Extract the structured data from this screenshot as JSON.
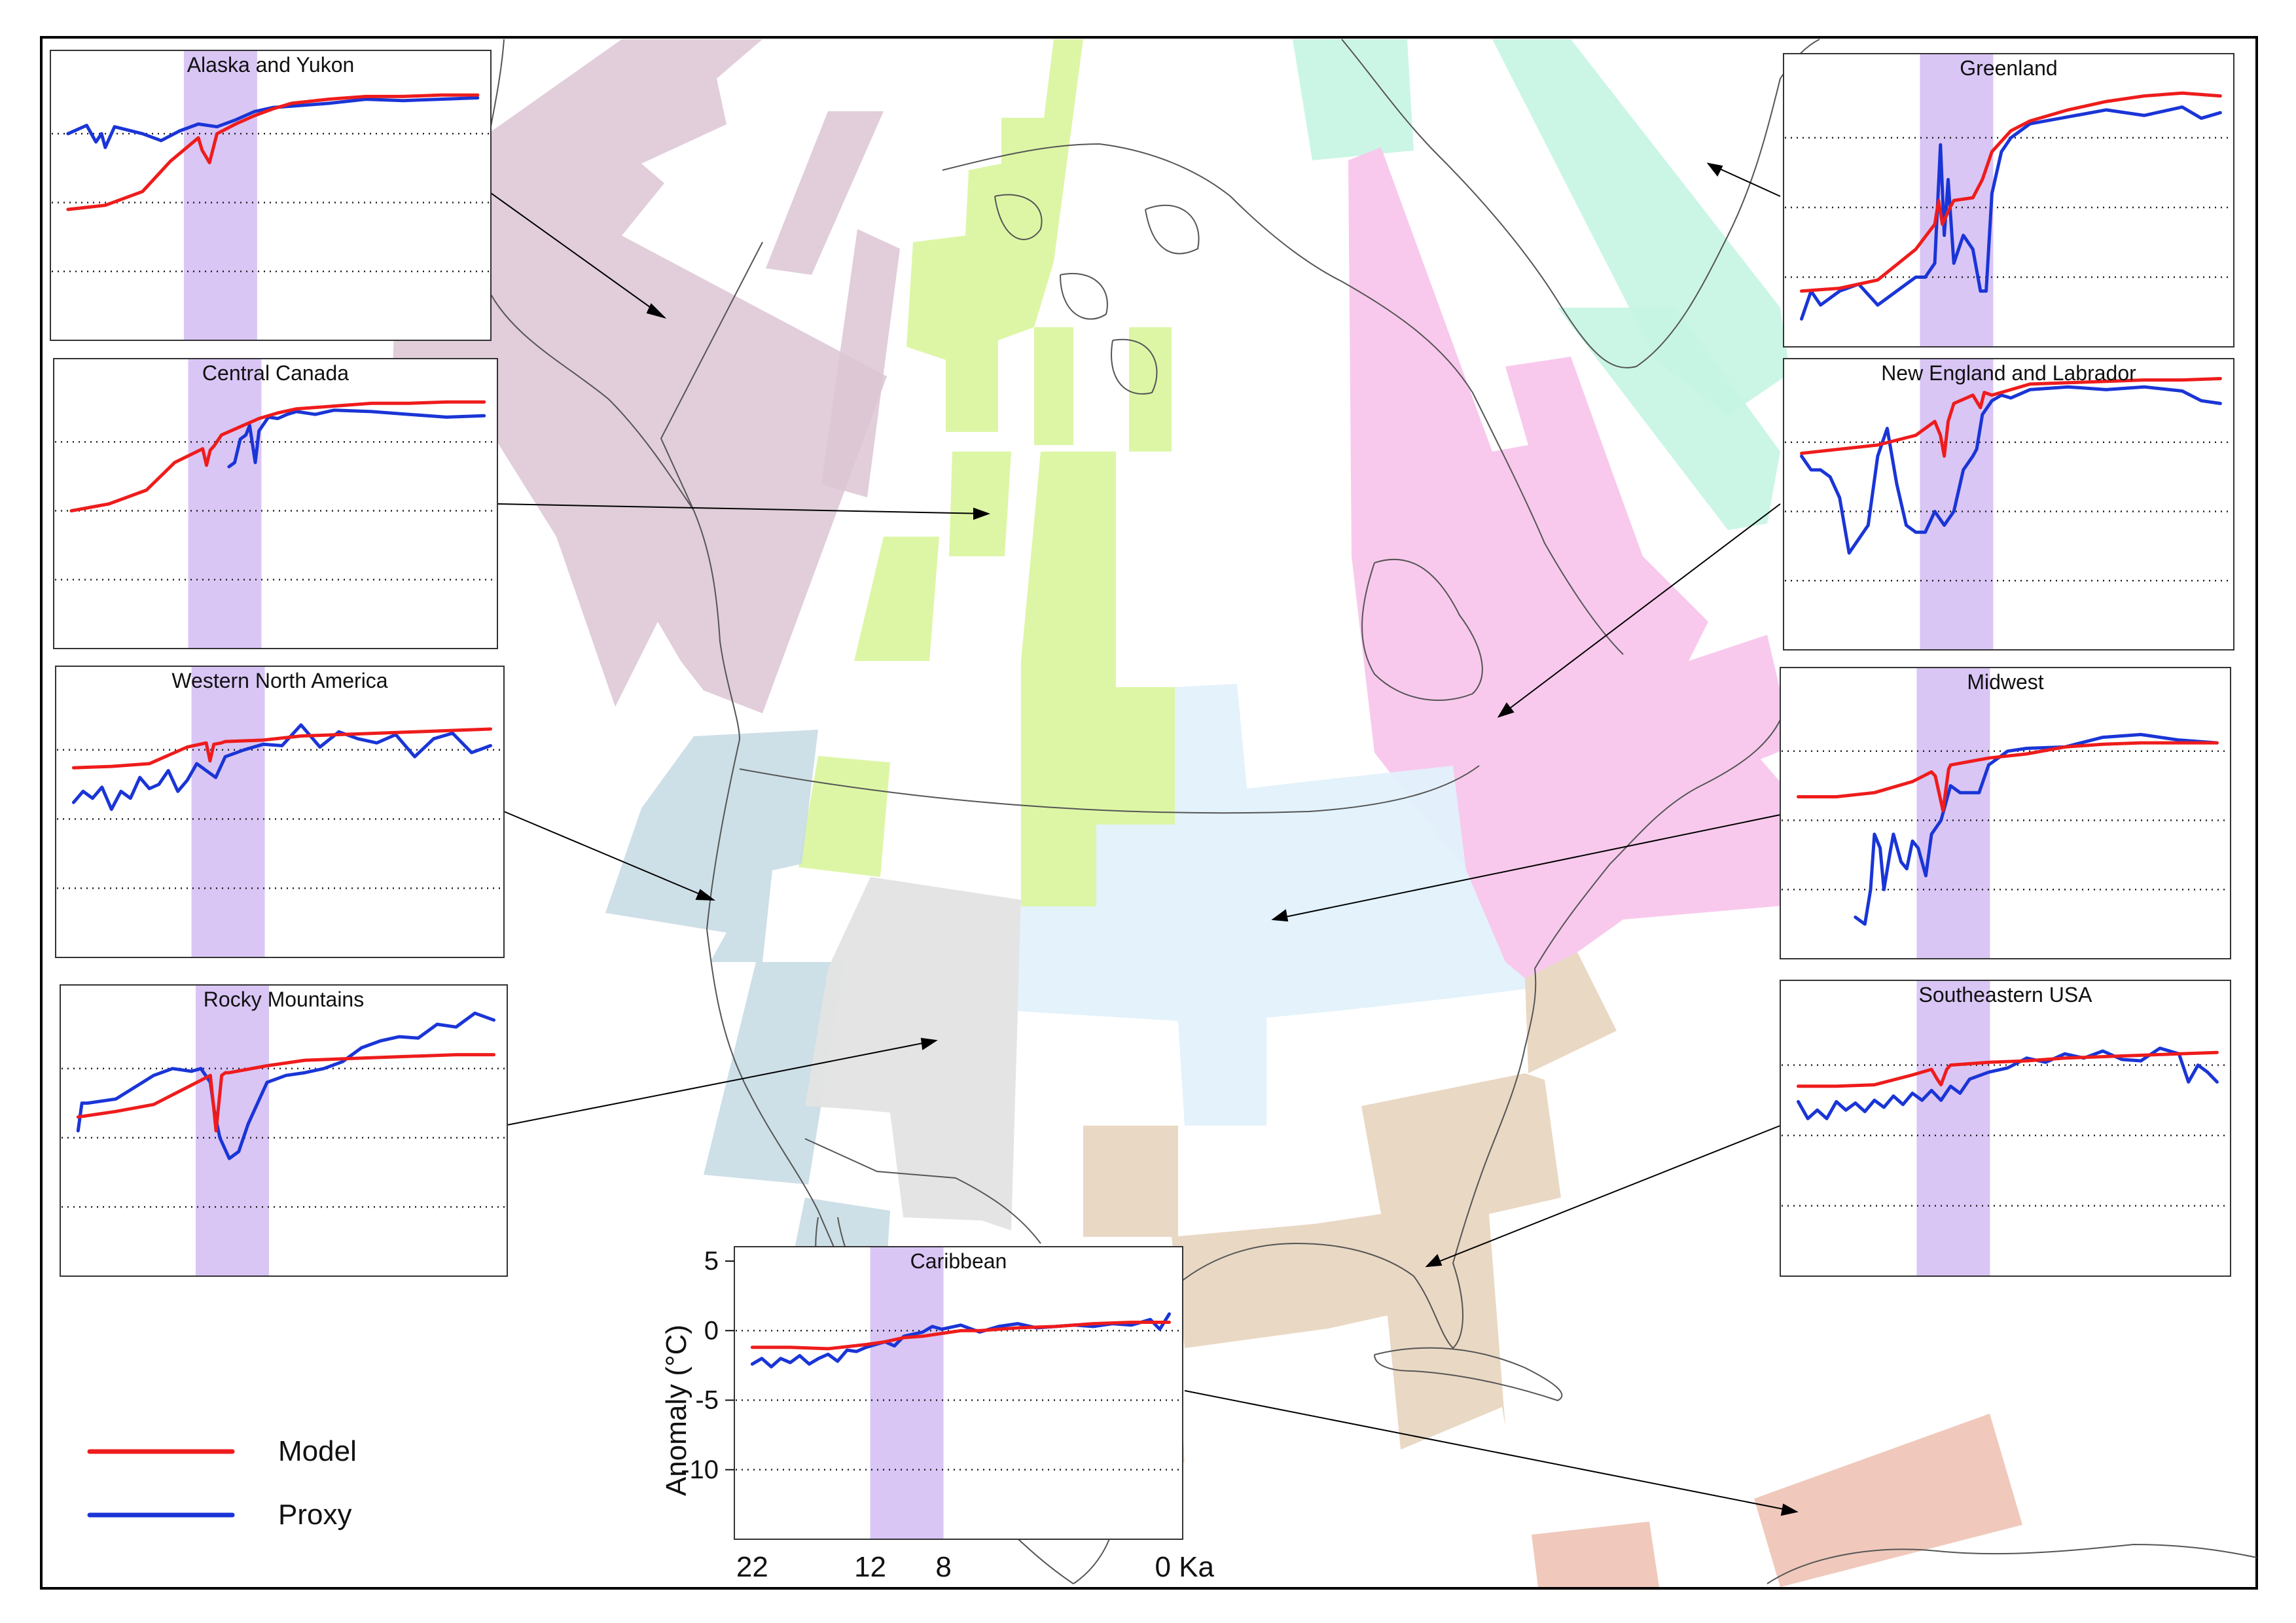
{
  "figure": {
    "series_legend": [
      {
        "name": "Model",
        "color": "#ee1c1c"
      },
      {
        "name": "Proxy",
        "color": "#1a35d6"
      }
    ],
    "highlight_color": "#d9c6f5",
    "axis": {
      "ylabel": "Anomaly (°C)",
      "y_ticks": [
        "5",
        "0",
        "-5",
        "-10"
      ],
      "x_ticks": [
        "22",
        "12",
        "8",
        "0 Ka"
      ]
    }
  },
  "chart_data": [
    {
      "type": "line",
      "title": "Alaska and Yukon",
      "xlabel": "",
      "ylabel": "",
      "xlim": [
        22,
        0
      ],
      "ylim": [
        -15,
        5
      ],
      "highlight_band_ka": [
        12,
        8
      ],
      "series": [
        {
          "name": "Model",
          "x": [
            22,
            20,
            18,
            16.5,
            15,
            14.8,
            14.4,
            14,
            13,
            12,
            11,
            10,
            8,
            6,
            4,
            2,
            0
          ],
          "values": [
            -5.5,
            -5.2,
            -4.2,
            -2,
            -0.3,
            -1.2,
            -2.1,
            0,
            0.7,
            1.3,
            1.8,
            2.2,
            2.5,
            2.7,
            2.7,
            2.8,
            2.8
          ]
        },
        {
          "name": "Proxy",
          "x": [
            22,
            21,
            20.5,
            20.2,
            20,
            19.5,
            18,
            17,
            16,
            15,
            14,
            13,
            12,
            11,
            10,
            8,
            6,
            4,
            2,
            0
          ],
          "values": [
            0,
            0.6,
            -0.6,
            0,
            -1,
            0.5,
            0,
            -0.5,
            0.2,
            0.7,
            0.5,
            1,
            1.6,
            1.9,
            2,
            2.2,
            2.5,
            2.4,
            2.5,
            2.6
          ]
        }
      ]
    },
    {
      "type": "line",
      "title": "Greenland",
      "xlabel": "",
      "ylabel": "",
      "xlim": [
        22,
        0
      ],
      "ylim": [
        -15,
        5
      ],
      "highlight_band_ka": [
        12,
        8
      ],
      "series": [
        {
          "name": "Model",
          "x": [
            22,
            20,
            18,
            16,
            15,
            14.8,
            14.6,
            14.2,
            14,
            13,
            12.5,
            12,
            11,
            10,
            8,
            6,
            4,
            2,
            0
          ],
          "values": [
            -11,
            -10.8,
            -10.2,
            -8,
            -6.2,
            -4.5,
            -6.2,
            -5,
            -4.5,
            -4.3,
            -3,
            -1,
            0.5,
            1.2,
            2,
            2.6,
            3,
            3.2,
            3
          ]
        },
        {
          "name": "Proxy",
          "x": [
            22,
            21.5,
            21,
            20,
            19,
            18,
            17,
            16,
            15.5,
            15,
            14.7,
            14.5,
            14.3,
            14,
            13.5,
            13,
            12.6,
            12.3,
            12,
            11.5,
            11,
            10,
            8,
            6,
            4,
            2,
            1,
            0
          ],
          "values": [
            -13,
            -11,
            -12,
            -11,
            -10.5,
            -12,
            -11,
            -10,
            -10,
            -9,
            -0.5,
            -7,
            -3,
            -9,
            -7,
            -8,
            -11,
            -11,
            -4,
            -1,
            0,
            1,
            1.5,
            2,
            1.6,
            2.2,
            1.4,
            1.8
          ]
        }
      ]
    },
    {
      "type": "line",
      "title": "Central Canada",
      "xlabel": "",
      "ylabel": "",
      "xlim": [
        22,
        0
      ],
      "ylim": [
        -15,
        5
      ],
      "highlight_band_ka": [
        12,
        8
      ],
      "series": [
        {
          "name": "Model",
          "x": [
            22,
            20,
            18,
            16.5,
            15,
            14.8,
            14.6,
            14.4,
            14,
            13,
            12,
            11,
            10,
            8,
            6,
            4,
            2,
            0
          ],
          "values": [
            -5,
            -4.5,
            -3.5,
            -1.5,
            -0.5,
            -1.7,
            -0.6,
            -0.3,
            0.5,
            1.1,
            1.7,
            2.1,
            2.4,
            2.6,
            2.8,
            2.8,
            2.9,
            2.9
          ]
        },
        {
          "name": "Proxy",
          "x": [
            13.6,
            13.3,
            13,
            12.7,
            12.5,
            12.2,
            12,
            11.5,
            11,
            10.5,
            10,
            9,
            8,
            6,
            4,
            2,
            0
          ],
          "values": [
            -1.8,
            -1.5,
            0.2,
            0.5,
            1.2,
            -1.5,
            0.8,
            1.8,
            1.7,
            2,
            2.2,
            2,
            2.3,
            2.2,
            2,
            1.8,
            1.9
          ]
        }
      ]
    },
    {
      "type": "line",
      "title": "New England and Labrador",
      "xlabel": "",
      "ylabel": "",
      "xlim": [
        22,
        0
      ],
      "ylim": [
        -15,
        5
      ],
      "highlight_band_ka": [
        12,
        8
      ],
      "series": [
        {
          "name": "Model",
          "x": [
            22,
            20,
            18,
            16,
            15,
            14.7,
            14.5,
            14.3,
            14,
            13,
            12.6,
            12.4,
            12,
            11,
            10,
            8,
            6,
            4,
            2,
            0
          ],
          "values": [
            -0.8,
            -0.5,
            -0.2,
            0.5,
            1.5,
            0.5,
            -1,
            1.5,
            2.8,
            3.4,
            2.5,
            3.6,
            3.4,
            3.8,
            4.2,
            4.3,
            4.4,
            4.5,
            4.5,
            4.6
          ]
        },
        {
          "name": "Proxy",
          "x": [
            22,
            21.5,
            21,
            20.5,
            20,
            19.5,
            19,
            18.5,
            18,
            17.5,
            17,
            16.5,
            16,
            15.5,
            15,
            14.5,
            14,
            13.5,
            13,
            12.8,
            12.5,
            12,
            11.5,
            11,
            10,
            8,
            6,
            4,
            2,
            1,
            0
          ],
          "values": [
            -1,
            -2,
            -2,
            -2.5,
            -4,
            -8,
            -7,
            -6,
            -1,
            1,
            -3,
            -6,
            -6.5,
            -6.5,
            -5,
            -6,
            -5,
            -2,
            -1,
            -0.5,
            2,
            3,
            3.4,
            3.2,
            3.8,
            4,
            3.8,
            4,
            3.7,
            3,
            2.8
          ]
        }
      ]
    },
    {
      "type": "line",
      "title": "Western North America",
      "xlabel": "",
      "ylabel": "",
      "xlim": [
        22,
        0
      ],
      "ylim": [
        -15,
        5
      ],
      "highlight_band_ka": [
        12,
        8
      ],
      "series": [
        {
          "name": "Model",
          "x": [
            22,
            20,
            18,
            16,
            15,
            14.8,
            14.6,
            14.2,
            14,
            12,
            10,
            8,
            6,
            4,
            2,
            0
          ],
          "values": [
            -1.3,
            -1.2,
            -1,
            0.2,
            0.5,
            -0.8,
            0.4,
            0.5,
            0.6,
            0.7,
            1,
            1.1,
            1.2,
            1.3,
            1.4,
            1.5
          ]
        },
        {
          "name": "Proxy",
          "x": [
            22,
            21.5,
            21,
            20.5,
            20,
            19.5,
            19,
            18.5,
            18,
            17.5,
            17,
            16.5,
            16,
            15.5,
            15,
            14.5,
            14,
            13,
            12,
            11,
            10,
            9,
            8,
            7,
            6,
            5,
            4,
            3,
            2,
            1,
            0
          ],
          "values": [
            -3.8,
            -3,
            -3.5,
            -2.7,
            -4.3,
            -3,
            -3.5,
            -2,
            -2.8,
            -2.5,
            -1.5,
            -3,
            -2.2,
            -1,
            -1.5,
            -2,
            -0.5,
            0,
            0.4,
            0.3,
            1.8,
            0.2,
            1.3,
            0.8,
            0.5,
            1.1,
            -0.5,
            0.8,
            1.2,
            -0.2,
            0.3
          ]
        }
      ]
    },
    {
      "type": "line",
      "title": "Midwest",
      "xlabel": "",
      "ylabel": "",
      "xlim": [
        22,
        0
      ],
      "ylim": [
        -15,
        5
      ],
      "highlight_band_ka": [
        12,
        8
      ],
      "series": [
        {
          "name": "Model",
          "x": [
            22,
            20,
            18,
            16,
            15,
            14.8,
            14.4,
            14.1,
            14,
            12,
            10,
            8,
            6,
            4,
            2,
            0
          ],
          "values": [
            -3.3,
            -3.3,
            -3,
            -2.2,
            -1.5,
            -1.8,
            -4.3,
            -1.3,
            -1,
            -0.5,
            -0.2,
            0.3,
            0.5,
            0.6,
            0.6,
            0.6
          ]
        },
        {
          "name": "Proxy",
          "x": [
            19,
            18.5,
            18.2,
            18,
            17.7,
            17.5,
            17.2,
            17,
            16.6,
            16.3,
            16,
            15.7,
            15.3,
            15,
            14.5,
            14,
            13.5,
            13,
            12.5,
            12,
            11,
            10,
            8,
            6,
            4,
            2,
            0
          ],
          "values": [
            -12,
            -12.5,
            -10,
            -6,
            -7,
            -10,
            -7.5,
            -6,
            -8,
            -8.5,
            -6.5,
            -7,
            -9,
            -6,
            -5,
            -2.5,
            -3,
            -3,
            -3,
            -1,
            0,
            0.2,
            0.3,
            1,
            1.2,
            0.8,
            0.6
          ]
        }
      ]
    },
    {
      "type": "line",
      "title": "Rocky Mountains",
      "xlabel": "",
      "ylabel": "",
      "xlim": [
        22,
        0
      ],
      "ylim": [
        -15,
        5
      ],
      "highlight_band_ka": [
        12,
        8
      ],
      "series": [
        {
          "name": "Model",
          "x": [
            22,
            20,
            18,
            16,
            15,
            14.7,
            14.4,
            14.2,
            14,
            12,
            10,
            8,
            6,
            4,
            2,
            0
          ],
          "values": [
            -3.5,
            -3.1,
            -2.6,
            -1.2,
            -0.5,
            -4.5,
            -0.5,
            -0.3,
            -0.3,
            0.2,
            0.6,
            0.7,
            0.8,
            0.9,
            1,
            1
          ]
        },
        {
          "name": "Proxy",
          "x": [
            22,
            21.8,
            21.5,
            20,
            18,
            17,
            16,
            15.5,
            15,
            14.8,
            14.5,
            14,
            13.5,
            13,
            12,
            11,
            10,
            9,
            8,
            7,
            6,
            5,
            4,
            3,
            2,
            1,
            0
          ],
          "values": [
            -4.5,
            -2.5,
            -2.5,
            -2.2,
            -0.5,
            0,
            -0.2,
            0,
            -1,
            -3,
            -5,
            -6.5,
            -6,
            -4,
            -1,
            -0.5,
            -0.3,
            0,
            0.5,
            1.5,
            2,
            2.3,
            2.2,
            3.2,
            3,
            4,
            3.5
          ]
        }
      ]
    },
    {
      "type": "line",
      "title": "Southeastern USA",
      "xlabel": "",
      "ylabel": "",
      "xlim": [
        22,
        0
      ],
      "ylim": [
        -15,
        5
      ],
      "highlight_band_ka": [
        12,
        8
      ],
      "series": [
        {
          "name": "Model",
          "x": [
            22,
            20,
            18,
            16,
            15,
            14.7,
            14.5,
            14.2,
            14,
            12,
            10,
            8,
            6,
            4,
            2,
            0
          ],
          "values": [
            -1.5,
            -1.5,
            -1.4,
            -0.7,
            -0.3,
            -1,
            -1.4,
            -0.3,
            0,
            0.2,
            0.3,
            0.5,
            0.6,
            0.7,
            0.8,
            0.9
          ]
        },
        {
          "name": "Proxy",
          "x": [
            22,
            21.5,
            21,
            20.5,
            20,
            19.5,
            19,
            18.5,
            18,
            17.5,
            17,
            16.5,
            16,
            15.5,
            15,
            14.5,
            14,
            13.5,
            13,
            12,
            11,
            10,
            9,
            8,
            7,
            6,
            5,
            4,
            3,
            2,
            1.5,
            1,
            0.5,
            0
          ],
          "values": [
            -2.6,
            -3.8,
            -3.2,
            -3.8,
            -2.6,
            -3.2,
            -2.7,
            -3.3,
            -2.5,
            -3,
            -2.2,
            -2.8,
            -2,
            -2.5,
            -1.8,
            -2.5,
            -1.5,
            -2,
            -1,
            -0.5,
            -0.2,
            0.5,
            0.2,
            0.8,
            0.5,
            1,
            0.4,
            0.3,
            1.2,
            0.8,
            -1.2,
            0,
            -0.5,
            -1.2
          ]
        }
      ]
    },
    {
      "type": "line",
      "title": "Caribbean",
      "xlabel": "",
      "ylabel": "Anomaly (°C)",
      "xlim": [
        22,
        0
      ],
      "ylim": [
        -15,
        5
      ],
      "highlight_band_ka": [
        12,
        8
      ],
      "series": [
        {
          "name": "Model",
          "x": [
            22,
            20,
            18,
            16,
            15,
            14,
            13,
            12,
            11,
            10,
            8,
            6,
            4,
            2,
            0
          ],
          "values": [
            -1.2,
            -1.2,
            -1.3,
            -1,
            -0.8,
            -0.5,
            -0.4,
            -0.2,
            0,
            0,
            0.2,
            0.3,
            0.5,
            0.6,
            0.6
          ]
        },
        {
          "name": "Proxy",
          "x": [
            22,
            21.5,
            21,
            20.5,
            20,
            19.5,
            19,
            18.5,
            18,
            17.5,
            17,
            16.5,
            16,
            15.5,
            15,
            14.5,
            14,
            13,
            12.5,
            12,
            11,
            10,
            9,
            8,
            7,
            6,
            5,
            4,
            3,
            2,
            1,
            0.5,
            0
          ],
          "values": [
            -2.4,
            -2,
            -2.6,
            -2,
            -2.3,
            -1.8,
            -2.4,
            -2,
            -1.7,
            -2.2,
            -1.4,
            -1.5,
            -1.2,
            -1,
            -0.8,
            -1.1,
            -0.4,
            -0.1,
            0.3,
            0.1,
            0.4,
            -0.1,
            0.3,
            0.5,
            0.2,
            0.3,
            0.4,
            0.3,
            0.5,
            0.4,
            0.8,
            0.1,
            1.2
          ]
        }
      ]
    }
  ]
}
